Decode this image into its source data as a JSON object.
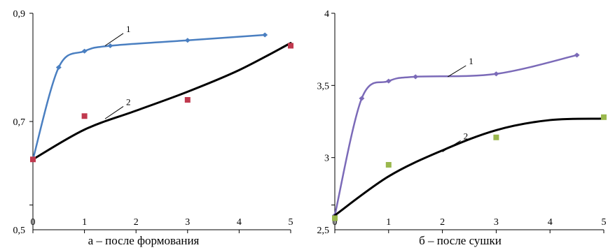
{
  "chart_data": [
    {
      "type": "line",
      "caption": "а – после формования",
      "xlim": [
        0,
        5
      ],
      "ylim": [
        0.5,
        0.9
      ],
      "x_ticks": [
        "0",
        "1",
        "2",
        "3",
        "4",
        "5"
      ],
      "y_ticks": [
        "0,5",
        "0,7",
        "0,9"
      ],
      "grid": false,
      "series": [
        {
          "name": "1",
          "color": "#4a7fc1",
          "markers": "diamond",
          "points": [
            [
              0,
              0.63
            ],
            [
              0.5,
              0.8
            ],
            [
              1,
              0.83
            ],
            [
              1.5,
              0.84
            ],
            [
              3,
              0.85
            ],
            [
              4.5,
              0.86
            ]
          ],
          "label_at": [
            1.4,
            0.84
          ]
        },
        {
          "name": "2",
          "color": "#000000",
          "markers": "none",
          "points": [
            [
              0,
              0.63
            ],
            [
              1,
              0.685
            ],
            [
              2,
              0.72
            ],
            [
              3,
              0.755
            ],
            [
              4,
              0.795
            ],
            [
              5,
              0.845
            ]
          ],
          "label_at": [
            1.4,
            0.705
          ]
        },
        {
          "name": "",
          "color": "#c0394e",
          "markers": "square",
          "kind": "scatter",
          "points": [
            [
              0,
              0.63
            ],
            [
              1,
              0.71
            ],
            [
              3,
              0.74
            ],
            [
              5,
              0.84
            ]
          ]
        }
      ]
    },
    {
      "type": "line",
      "caption": "б – после сушки",
      "xlim": [
        0,
        5
      ],
      "ylim": [
        2.5,
        4
      ],
      "x_ticks": [
        "0",
        "1",
        "2",
        "3",
        "4",
        "5"
      ],
      "y_ticks": [
        "2,5",
        "3",
        "3,5",
        "4"
      ],
      "grid": false,
      "series": [
        {
          "name": "1",
          "color": "#7b6ab8",
          "markers": "diamond",
          "points": [
            [
              0,
              2.6
            ],
            [
              0.5,
              3.41
            ],
            [
              1,
              3.53
            ],
            [
              1.5,
              3.56
            ],
            [
              3,
              3.58
            ],
            [
              4.5,
              3.71
            ]
          ],
          "label_at": [
            2.1,
            3.56
          ]
        },
        {
          "name": "2",
          "color": "#000000",
          "markers": "none",
          "points": [
            [
              0,
              2.6
            ],
            [
              1,
              2.87
            ],
            [
              2,
              3.05
            ],
            [
              3,
              3.19
            ],
            [
              4,
              3.26
            ],
            [
              5,
              3.27
            ]
          ],
          "label_at": [
            2.0,
            3.04
          ]
        },
        {
          "name": "",
          "color": "#9ab84d",
          "markers": "square",
          "kind": "scatter",
          "points": [
            [
              0,
              2.58
            ],
            [
              1,
              2.95
            ],
            [
              3,
              3.14
            ],
            [
              5,
              3.28
            ]
          ]
        }
      ]
    }
  ]
}
